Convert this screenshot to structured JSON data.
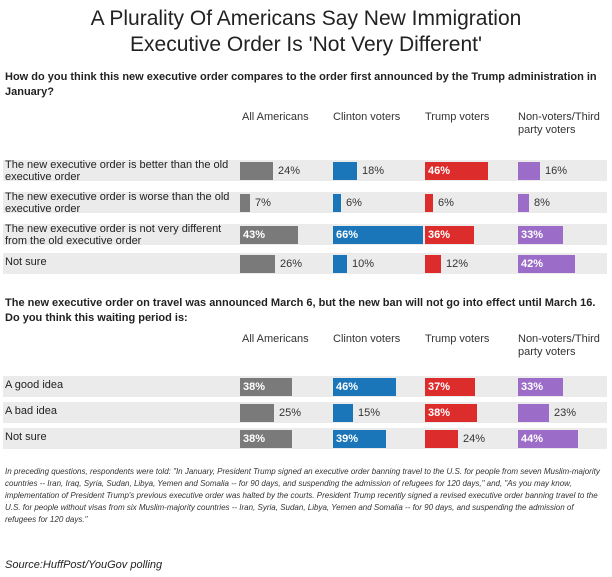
{
  "title_line1": "A Plurality Of Americans Say New Immigration",
  "title_line2": "Executive Order  Is 'Not Very Different'",
  "colors": {
    "All Americans": "#7a7a7a",
    "Clinton voters": "#1a76b9",
    "Trump voters": "#dd2c2c",
    "Non-voters/Third party voters": "#9b6cc8",
    "row_background": "#ebebeb"
  },
  "chart_data": [
    {
      "type": "bar",
      "question": "How do you think this new executive order compares to the order first announced by the Trump administration in January?",
      "series_labels": [
        "All Americans",
        "Clinton voters",
        "Trump voters",
        "Non-voters/Third party voters"
      ],
      "categories": [
        "The new executive order is better than the old executive order",
        "The new executive order is worse than the old executive order",
        "The new executive order is not very different from the old executive order",
        "Not sure"
      ],
      "series": [
        {
          "name": "All Americans",
          "values": [
            24,
            7,
            43,
            26
          ],
          "labels": [
            "24%",
            "7%",
            "43%",
            "26%"
          ]
        },
        {
          "name": "Clinton voters",
          "values": [
            18,
            6,
            66,
            10
          ],
          "labels": [
            "18%",
            "6%",
            "66%",
            "10%"
          ]
        },
        {
          "name": "Trump voters",
          "values": [
            46,
            6,
            36,
            12
          ],
          "labels": [
            "46%",
            "6%",
            "36%",
            "12%"
          ]
        },
        {
          "name": "Non-voters/Third party voters",
          "values": [
            16,
            8,
            33,
            42
          ],
          "labels": [
            "16%",
            "8%",
            "33%",
            "42%"
          ]
        }
      ],
      "unit": "%"
    },
    {
      "type": "bar",
      "question": "The new executive order on travel was announced March 6, but the new ban will not go into effect until March 16. Do you think this waiting period is:",
      "series_labels": [
        "All Americans",
        "Clinton voters",
        "Trump voters",
        "Non-voters/Third party voters"
      ],
      "categories": [
        "A good idea",
        "A bad idea",
        "Not sure"
      ],
      "series": [
        {
          "name": "All Americans",
          "values": [
            38,
            25,
            38
          ],
          "labels": [
            "38%",
            "25%",
            "38%"
          ]
        },
        {
          "name": "Clinton voters",
          "values": [
            46,
            15,
            39
          ],
          "labels": [
            "46%",
            "15%",
            "39%"
          ]
        },
        {
          "name": "Trump voters",
          "values": [
            37,
            38,
            24
          ],
          "labels": [
            "37%",
            "38%",
            "24%"
          ]
        },
        {
          "name": "Non-voters/Third party voters",
          "values": [
            33,
            23,
            44
          ],
          "labels": [
            "33%",
            "23%",
            "44%"
          ]
        }
      ],
      "unit": "%"
    }
  ],
  "footnote": "In preceding questions, respondents were told: \"In January, President Trump signed an executive order banning travel to the U.S. for people from seven Muslim-majority countries -- Iran, Iraq, Syria, Sudan, Libya, Yemen and Somalia -- for 90 days, and suspending the admission of refugees for 120 days,\" and, \"As you may know, implementation of President Trump's previous executive order was halted by the courts. President Trump recently signed a revised executive order banning travel to the U.S. for people without visas from six Muslim-majority countries -- Iran, Syria, Sudan, Libya, Yemen and Somalia -- for 90 days, and suspending the admission of refugees for 120 days.\"",
  "source": "Source:HuffPost/YouGov polling"
}
